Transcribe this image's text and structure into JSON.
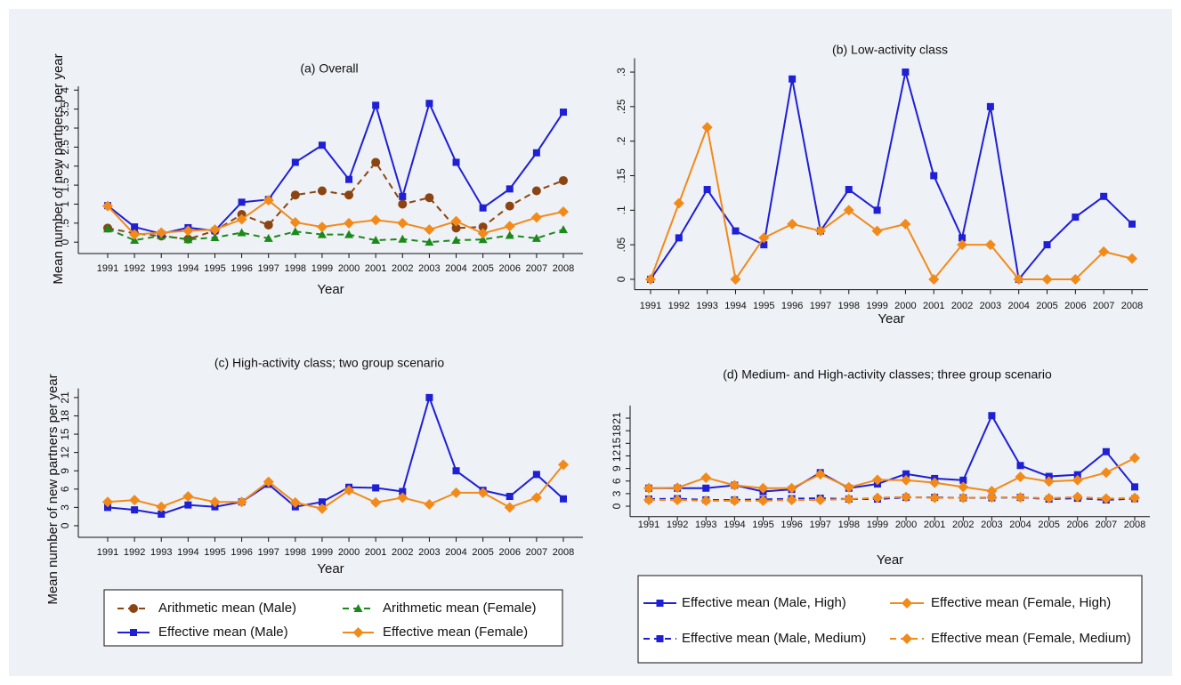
{
  "chart_data": [
    {
      "type": "line",
      "title": "(a) Overall",
      "xlabel": "Year",
      "ylabel": "Mean number of new partners per year",
      "categories": [
        "1991",
        "1992",
        "1993",
        "1994",
        "1995",
        "1996",
        "1997",
        "1998",
        "1999",
        "2000",
        "2001",
        "2002",
        "2003",
        "2004",
        "2005",
        "2006",
        "2007",
        "2008"
      ],
      "ylim": [
        -0.3,
        4.1
      ],
      "yticks": [
        0,
        {
          "value": 0.5,
          "label": ".5"
        },
        1,
        1.5,
        2,
        2.5,
        3,
        3.5,
        4
      ],
      "series": [
        {
          "name": "Arithmetic mean (Male)",
          "color": "#8b4513",
          "dash": true,
          "marker": "circle",
          "values": [
            0.37,
            0.23,
            0.16,
            0.08,
            0.3,
            0.73,
            0.45,
            1.24,
            1.35,
            1.24,
            2.1,
            1.0,
            1.17,
            0.37,
            0.4,
            0.95,
            1.35,
            1.62
          ]
        },
        {
          "name": "Arithmetic mean (Female)",
          "color": "#1a8a1a",
          "dash": true,
          "marker": "triangle",
          "values": [
            0.35,
            0.05,
            0.17,
            0.07,
            0.12,
            0.25,
            0.1,
            0.28,
            0.2,
            0.2,
            0.05,
            0.08,
            0.0,
            0.05,
            0.07,
            0.18,
            0.1,
            0.33
          ]
        },
        {
          "name": "Effective mean (Male)",
          "color": "#1f1fd6",
          "dash": false,
          "marker": "square",
          "values": [
            0.96,
            0.4,
            0.22,
            0.38,
            0.3,
            1.05,
            1.12,
            2.1,
            2.55,
            1.65,
            3.6,
            1.2,
            3.65,
            2.1,
            0.9,
            1.4,
            2.35,
            3.42
          ]
        },
        {
          "name": "Effective mean (Female)",
          "color": "#f28a1a",
          "dash": false,
          "marker": "diamond",
          "values": [
            0.95,
            0.2,
            0.25,
            0.3,
            0.33,
            0.6,
            1.1,
            0.52,
            0.4,
            0.5,
            0.58,
            0.5,
            0.33,
            0.55,
            0.23,
            0.42,
            0.65,
            0.8
          ]
        }
      ]
    },
    {
      "type": "line",
      "title": "(b) Low-activity class",
      "xlabel": "Year",
      "categories": [
        "1991",
        "1992",
        "1993",
        "1994",
        "1995",
        "1996",
        "1997",
        "1998",
        "1999",
        "2000",
        "2001",
        "2002",
        "2003",
        "2004",
        "2005",
        "2006",
        "2007",
        "2008"
      ],
      "ylim": [
        -0.015,
        0.32
      ],
      "yticks": [
        0,
        {
          "value": 0.05,
          "label": ".05"
        },
        {
          "value": 0.1,
          "label": ".1"
        },
        {
          "value": 0.15,
          "label": ".15"
        },
        {
          "value": 0.2,
          "label": ".2"
        },
        {
          "value": 0.25,
          "label": ".25"
        },
        {
          "value": 0.3,
          "label": ".3"
        }
      ],
      "series": [
        {
          "color": "#1f1fd6",
          "dash": false,
          "marker": "square",
          "values": [
            0,
            0.06,
            0.13,
            0.07,
            0.05,
            0.29,
            0.07,
            0.13,
            0.1,
            0.3,
            0.15,
            0.06,
            0.25,
            0,
            0.05,
            0.09,
            0.12,
            0.08
          ]
        },
        {
          "color": "#f28a1a",
          "dash": false,
          "marker": "diamond",
          "values": [
            0,
            0.11,
            0.22,
            0,
            0.06,
            0.08,
            0.07,
            0.1,
            0.07,
            0.08,
            0,
            0.05,
            0.05,
            0,
            0,
            0,
            0.04,
            0.03
          ]
        }
      ]
    },
    {
      "type": "line",
      "title": "(c) High-activity class; two group scenario",
      "xlabel": "Year",
      "ylabel": "Mean number of new partners per year",
      "categories": [
        "1991",
        "1992",
        "1993",
        "1994",
        "1995",
        "1996",
        "1997",
        "1998",
        "1999",
        "2000",
        "2001",
        "2002",
        "2003",
        "2004",
        "2005",
        "2006",
        "2007",
        "2008"
      ],
      "ylim": [
        -1.9,
        22.5
      ],
      "yticks": [
        0,
        3,
        6,
        9,
        12,
        15,
        18,
        21
      ],
      "series": [
        {
          "color": "#1f1fd6",
          "dash": false,
          "marker": "square",
          "values": [
            3.0,
            2.6,
            1.9,
            3.4,
            3.1,
            3.9,
            6.8,
            3.1,
            3.9,
            6.3,
            6.2,
            5.6,
            21,
            9,
            5.8,
            4.8,
            8.4,
            4.4
          ]
        },
        {
          "color": "#f28a1a",
          "dash": false,
          "marker": "diamond",
          "values": [
            3.9,
            4.2,
            3.1,
            4.8,
            3.9,
            3.9,
            7.2,
            3.8,
            2.8,
            5.8,
            3.8,
            4.6,
            3.5,
            5.4,
            5.4,
            3.0,
            4.6,
            10
          ]
        }
      ]
    },
    {
      "type": "line",
      "title": "(d) Medium- and High-activity classes; three group scenario",
      "xlabel": "Year",
      "categories": [
        "1991",
        "1992",
        "1993",
        "1994",
        "1995",
        "1996",
        "1997",
        "1998",
        "1999",
        "2000",
        "2001",
        "2002",
        "2003",
        "2004",
        "2005",
        "2006",
        "2007",
        "2008"
      ],
      "ylim": [
        -2.5,
        24
      ],
      "yticks": [
        0,
        3,
        6,
        9,
        12,
        15,
        18,
        21
      ],
      "series": [
        {
          "name": "Effective mean (Male, High)",
          "color": "#1f1fd6",
          "dash": false,
          "marker": "square",
          "values": [
            4.3,
            4.3,
            4.3,
            5.0,
            3.5,
            4.0,
            8.0,
            4.3,
            5.3,
            7.7,
            6.6,
            6.2,
            21.6,
            9.7,
            7.1,
            7.5,
            13.0,
            4.6
          ]
        },
        {
          "name": "Effective mean (Female, High)",
          "color": "#f28a1a",
          "dash": false,
          "marker": "diamond",
          "values": [
            4.3,
            4.4,
            6.8,
            5.0,
            4.3,
            4.3,
            7.6,
            4.5,
            6.3,
            6.2,
            5.6,
            4.6,
            3.6,
            7.0,
            5.9,
            6.2,
            8.0,
            11.5
          ]
        },
        {
          "name": "Effective mean (Male, Medium)",
          "color": "#1f1fd6",
          "dash": true,
          "marker": "square",
          "values": [
            1.7,
            1.8,
            1.5,
            1.5,
            1.6,
            1.8,
            1.9,
            1.7,
            1.7,
            2.1,
            2.1,
            2.0,
            2.0,
            2.1,
            1.7,
            1.9,
            1.5,
            1.8
          ]
        },
        {
          "name": "Effective mean (Female, Medium)",
          "color": "#f28a1a",
          "dash": true,
          "marker": "diamond",
          "values": [
            1.5,
            1.5,
            1.3,
            1.3,
            1.3,
            1.5,
            1.5,
            1.7,
            2.0,
            2.2,
            2.0,
            2.0,
            2.1,
            2.1,
            1.9,
            2.2,
            1.8,
            2.0
          ]
        }
      ]
    }
  ]
}
